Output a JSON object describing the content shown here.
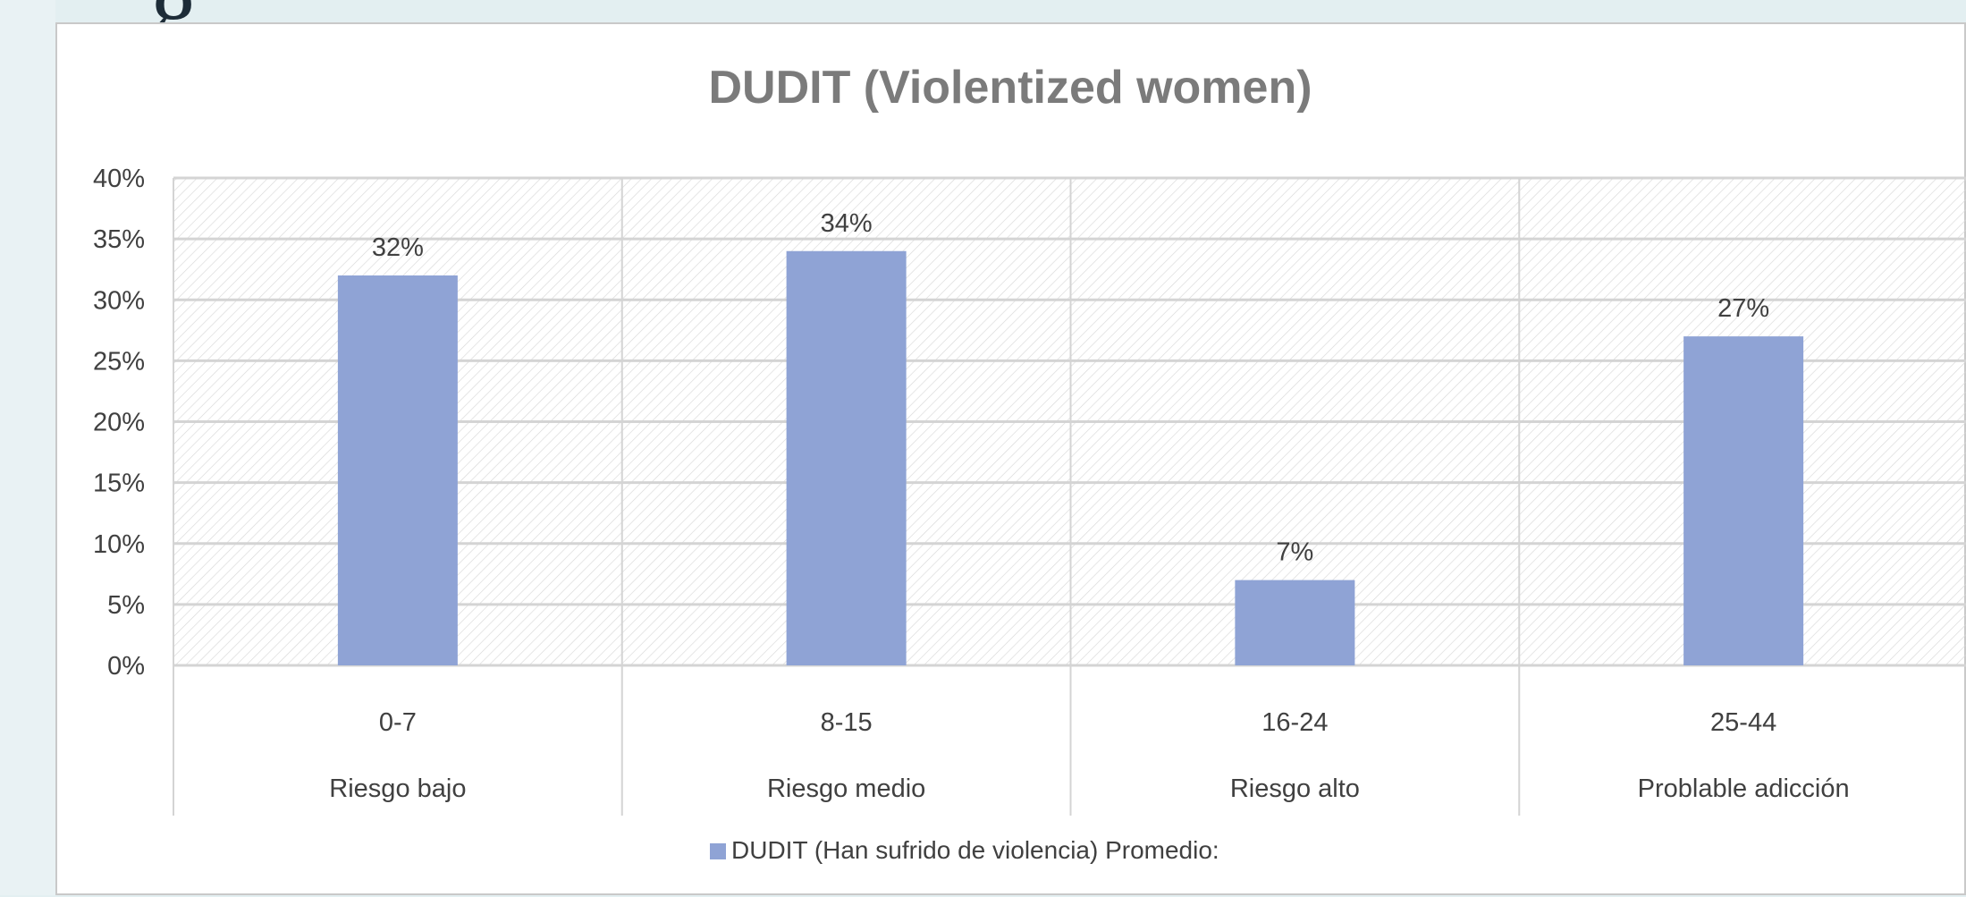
{
  "slide": {
    "title_fragment": "g"
  },
  "colors": {
    "bar": "#8fa3d5",
    "grid": "#d4d4d4",
    "hatch": "#d8d8d8",
    "title": "#7b7b7b",
    "text": "#404040"
  },
  "chart_data": {
    "type": "bar",
    "title": "DUDIT (Violentized women)",
    "categories": [
      "0-7",
      "8-15",
      "16-24",
      "25-44"
    ],
    "category_groups": [
      "Riesgo bajo",
      "Riesgo medio",
      "Riesgo alto",
      "Problable adicción"
    ],
    "series": [
      {
        "name": "DUDIT (Han sufrido de violencia) Promedio:",
        "values": [
          32,
          34,
          7,
          27
        ],
        "data_labels": [
          "32%",
          "34%",
          "7%",
          "27%"
        ]
      }
    ],
    "ylim": [
      0,
      40
    ],
    "yticks": [
      0,
      5,
      10,
      15,
      20,
      25,
      30,
      35,
      40
    ],
    "ytick_labels": [
      "0%",
      "5%",
      "10%",
      "15%",
      "20%",
      "25%",
      "30%",
      "35%",
      "40%"
    ],
    "grid": true,
    "plot_background": "diagonal-hatch",
    "legend_position": "bottom"
  }
}
